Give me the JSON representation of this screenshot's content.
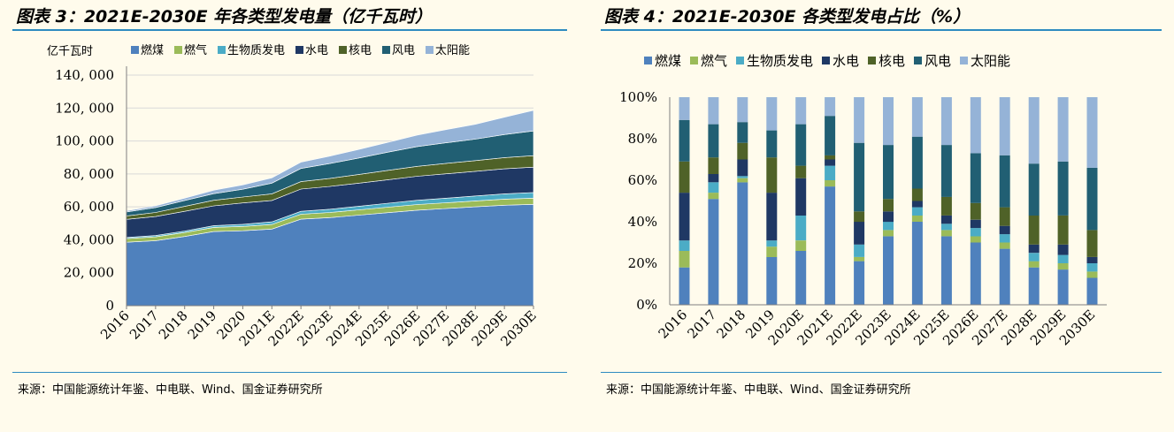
{
  "left": {
    "title": "图表 3：2021E-2030E 年各类型发电量（亿千瓦时）",
    "source": "来源：中国能源统计年鉴、中电联、Wind、国金证券研究所"
  },
  "right": {
    "title": "图表 4：2021E-2030E 各类型发电占比（%）",
    "source": "来源：中国能源统计年鉴、中电联、Wind、国金证券研究所"
  },
  "colors": {
    "燃煤": "#4F81BD",
    "燃气": "#9BBB59",
    "生物质发电": "#4BACC6",
    "水电": "#1F3864",
    "核电": "#4F6228",
    "风电": "#215F73",
    "太阳能": "#95B3D7"
  },
  "chart_data": [
    {
      "type": "area",
      "stacked": true,
      "ylabel": "亿千瓦时",
      "ylim": [
        0,
        140000
      ],
      "yticks": [
        "0",
        "20, 000",
        "40, 000",
        "60, 000",
        "80, 000",
        "100, 000",
        "120, 000",
        "140, 000"
      ],
      "yticks_values": [
        0,
        20000,
        40000,
        60000,
        80000,
        100000,
        120000,
        140000
      ],
      "grid": true,
      "legend": "top",
      "categories": [
        "2016",
        "2017",
        "2018",
        "2019",
        "2020",
        "2021E",
        "2022E",
        "2023E",
        "2024E",
        "2025E",
        "2026E",
        "2027E",
        "2028E",
        "2029E",
        "2030E"
      ],
      "series": [
        {
          "name": "燃煤",
          "values": [
            38500,
            39500,
            42000,
            45000,
            45500,
            46500,
            52500,
            53500,
            55000,
            56500,
            58000,
            59000,
            60000,
            61000,
            61500
          ]
        },
        {
          "name": "燃气",
          "values": [
            2200,
            2300,
            2400,
            2500,
            2600,
            2800,
            3000,
            3100,
            3200,
            3300,
            3400,
            3500,
            3600,
            3700,
            3800
          ]
        },
        {
          "name": "生物质发电",
          "values": [
            700,
            800,
            900,
            1100,
            1300,
            1600,
            1800,
            2000,
            2200,
            2400,
            2600,
            2800,
            3000,
            3200,
            3400
          ]
        },
        {
          "name": "水电",
          "values": [
            11000,
            11500,
            12000,
            12000,
            13000,
            13000,
            13500,
            13800,
            14000,
            14300,
            14600,
            14800,
            15000,
            15200,
            15400
          ]
        },
        {
          "name": "核电",
          "values": [
            2100,
            2500,
            3000,
            3400,
            3600,
            4000,
            4500,
            4900,
            5300,
            5700,
            6000,
            6300,
            6500,
            6800,
            7000
          ]
        },
        {
          "name": "风电",
          "values": [
            2400,
            3000,
            3600,
            4000,
            4700,
            6500,
            8000,
            9000,
            10000,
            11000,
            12000,
            12500,
            13000,
            14000,
            15000
          ]
        },
        {
          "name": "太阳能",
          "values": [
            700,
            1000,
            1400,
            2100,
            2600,
            3200,
            3800,
            4500,
            5200,
            6000,
            7000,
            8000,
            9000,
            10500,
            12500
          ]
        }
      ]
    },
    {
      "type": "bar",
      "stacked": true,
      "ylim": [
        0,
        100
      ],
      "yticks": [
        "0%",
        "20%",
        "40%",
        "60%",
        "80%",
        "100%"
      ],
      "yticks_values": [
        0,
        20,
        40,
        60,
        80,
        100
      ],
      "legend": "top",
      "categories": [
        "2016",
        "2017",
        "2018",
        "2019",
        "2020E",
        "2021E",
        "2022E",
        "2023E",
        "2024E",
        "2025E",
        "2026E",
        "2027E",
        "2028E",
        "2029E",
        "2030E"
      ],
      "series": [
        {
          "name": "燃煤",
          "values": [
            18,
            51,
            59,
            23,
            26,
            57,
            21,
            33,
            40,
            33,
            30,
            27,
            18,
            17,
            13
          ]
        },
        {
          "name": "燃气",
          "values": [
            8,
            3,
            2,
            5,
            5,
            3,
            2,
            3,
            3,
            3,
            3,
            3,
            3,
            3,
            3
          ]
        },
        {
          "name": "生物质发电",
          "values": [
            5,
            5,
            1,
            3,
            12,
            7,
            6,
            4,
            4,
            3,
            4,
            4,
            4,
            4,
            4
          ]
        },
        {
          "name": "水电",
          "values": [
            23,
            4,
            8,
            23,
            18,
            3,
            11,
            5,
            3,
            4,
            4,
            4,
            4,
            5,
            3
          ]
        },
        {
          "name": "核电",
          "values": [
            15,
            8,
            8,
            17,
            6,
            2,
            5,
            6,
            6,
            9,
            8,
            9,
            14,
            14,
            13
          ]
        },
        {
          "name": "风电",
          "values": [
            20,
            16,
            10,
            13,
            20,
            19,
            33,
            26,
            25,
            25,
            24,
            25,
            25,
            26,
            30
          ]
        },
        {
          "name": "太阳能",
          "values": [
            11,
            13,
            12,
            16,
            13,
            9,
            22,
            23,
            19,
            23,
            27,
            28,
            32,
            31,
            34
          ]
        }
      ]
    }
  ]
}
